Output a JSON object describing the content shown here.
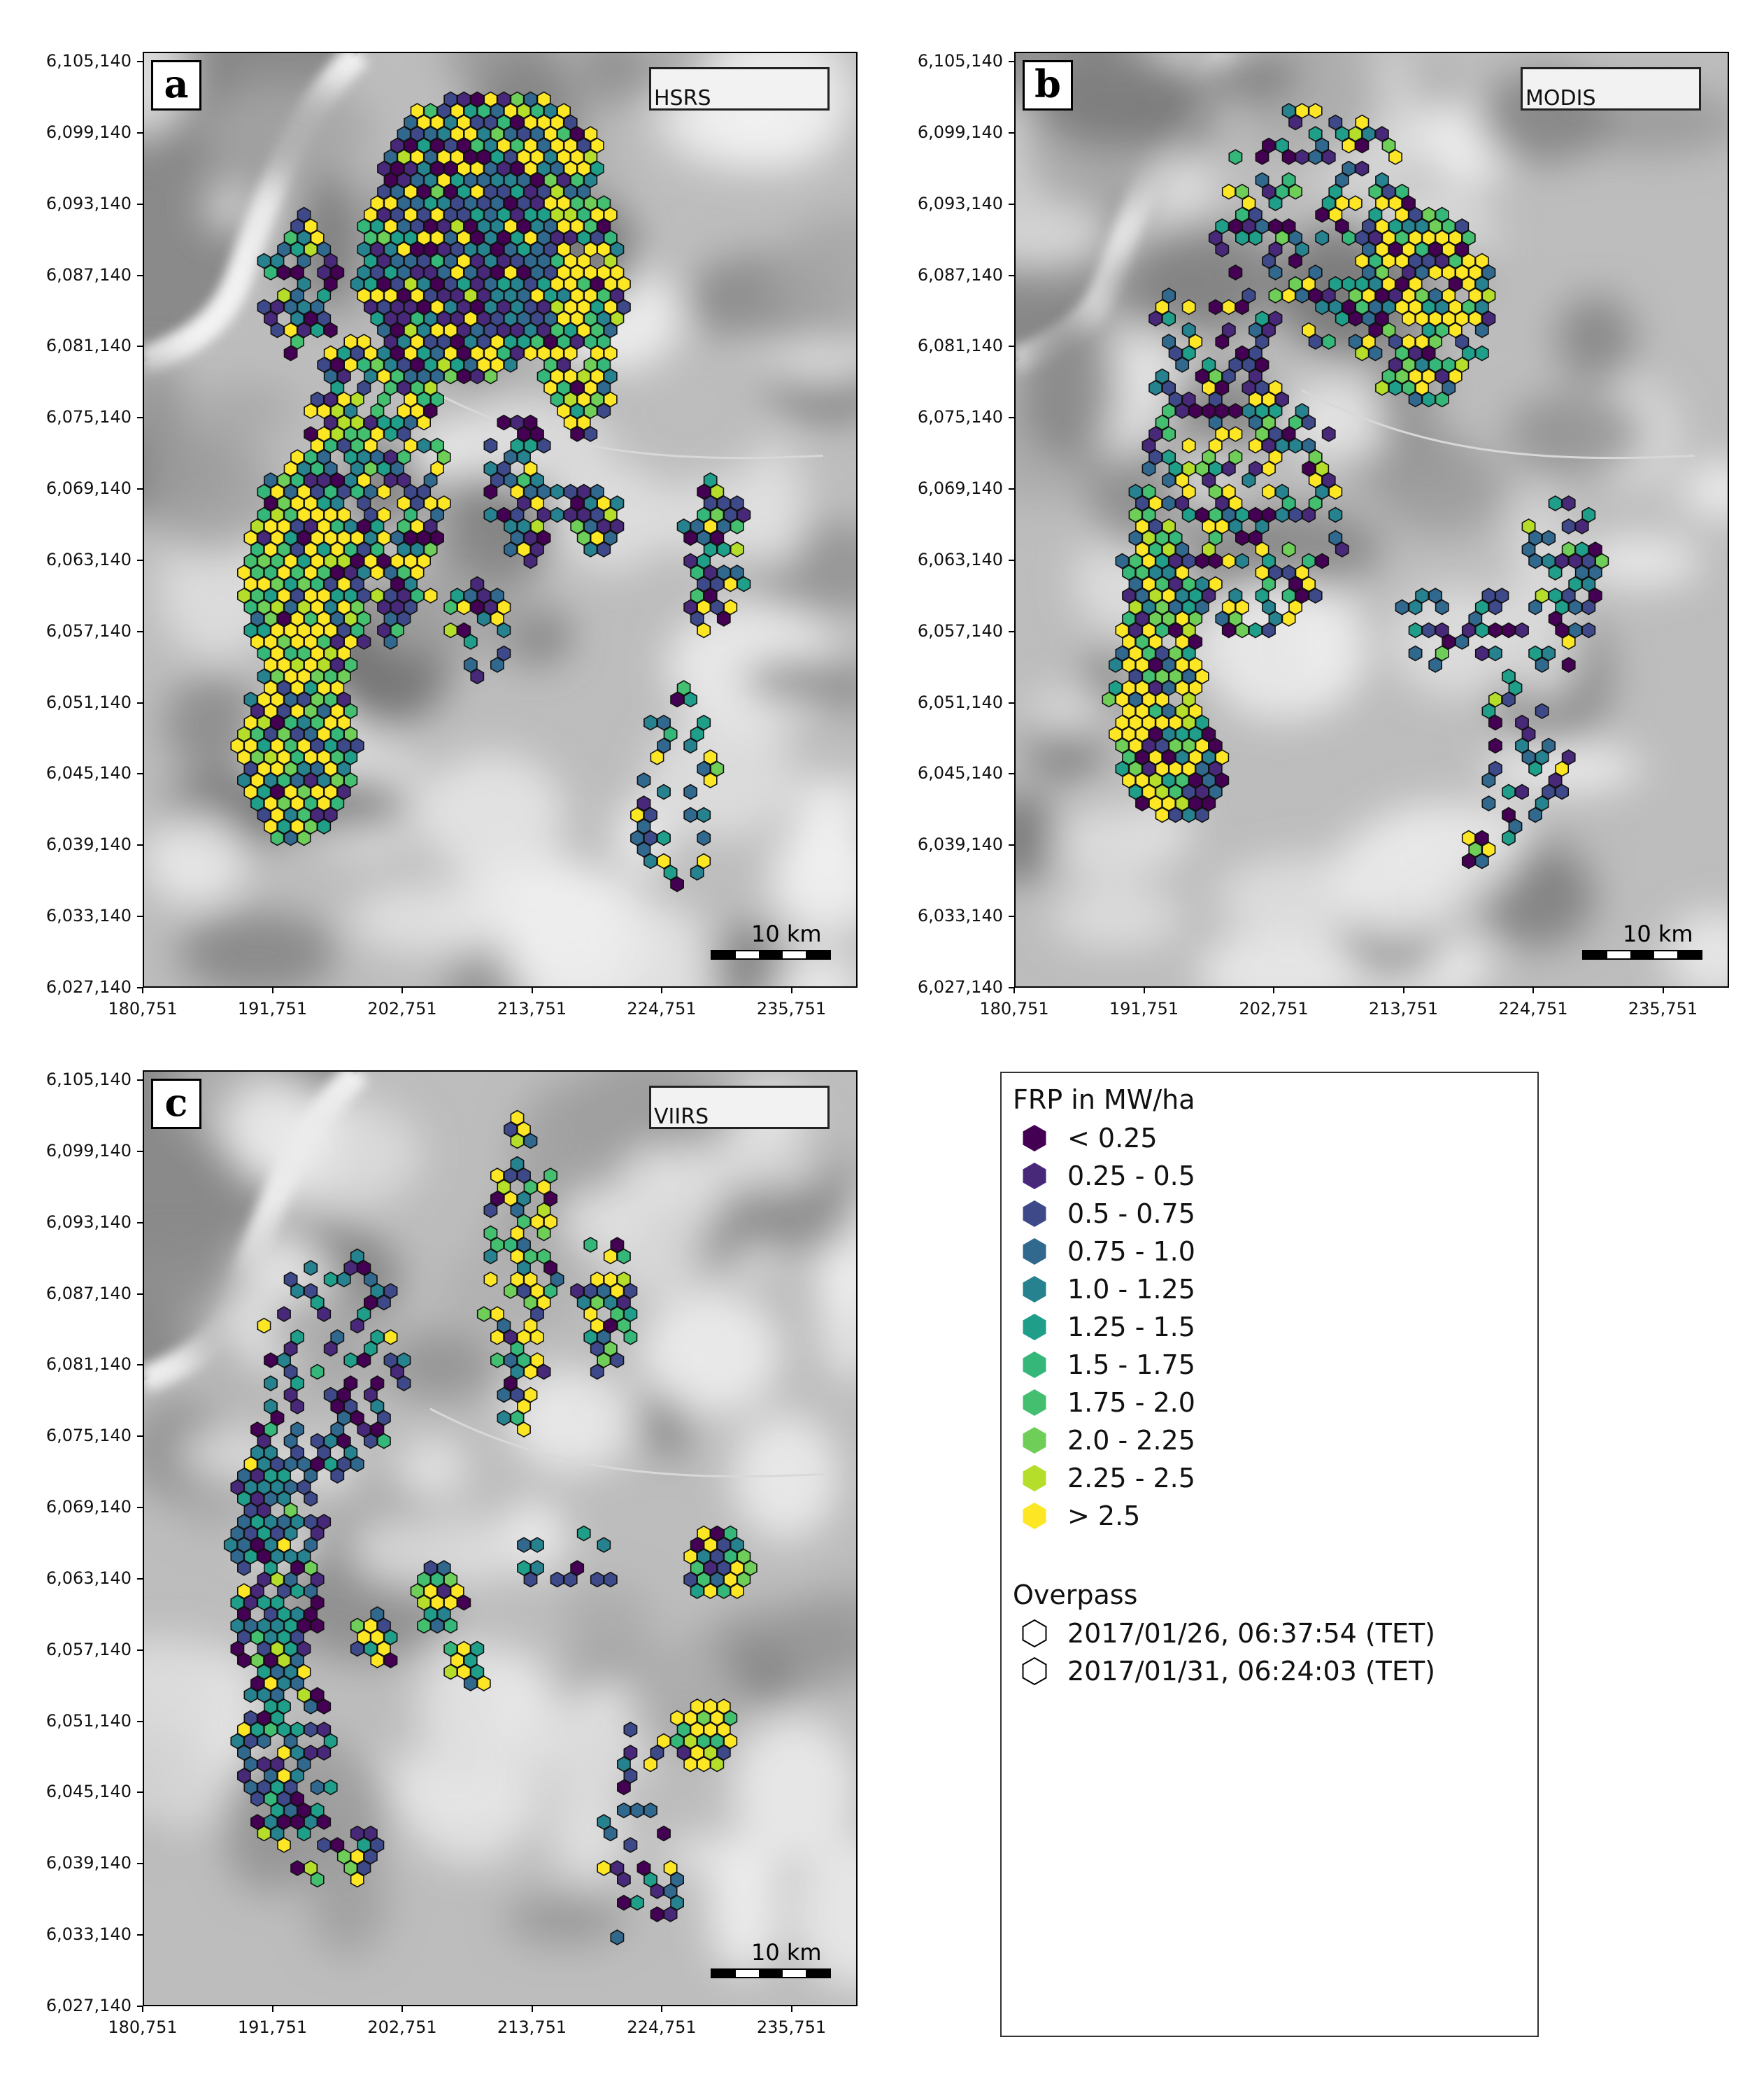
{
  "panels": [
    {
      "letter": "a",
      "sensor": "HSRS"
    },
    {
      "letter": "b",
      "sensor": "MODIS"
    },
    {
      "letter": "c",
      "sensor": "VIIRS"
    }
  ],
  "axes": {
    "y_ticks": [
      "6,105,140",
      "6,099,140",
      "6,093,140",
      "6,087,140",
      "6,081,140",
      "6,075,140",
      "6,069,140",
      "6,063,140",
      "6,057,140",
      "6,051,140",
      "6,045,140",
      "6,039,140",
      "6,033,140",
      "6,027,140"
    ],
    "x_ticks": [
      "180,751",
      "191,751",
      "202,751",
      "213,751",
      "224,751",
      "235,751"
    ]
  },
  "scalebar_label": "10 km",
  "legend": {
    "frp_title": "FRP in MW/ha",
    "classes": [
      {
        "label": "< 0.25",
        "color": "#440154"
      },
      {
        "label": "0.25 - 0.5",
        "color": "#482878"
      },
      {
        "label": "0.5 - 0.75",
        "color": "#3e4989"
      },
      {
        "label": "0.75 - 1.0",
        "color": "#31688e"
      },
      {
        "label": "1.0 - 1.25",
        "color": "#26828e"
      },
      {
        "label": "1.25 - 1.5",
        "color": "#1f9e89"
      },
      {
        "label": "1.5 - 1.75",
        "color": "#35b779"
      },
      {
        "label": "1.75 - 2.0",
        "color": "#44bf70"
      },
      {
        "label": "2.0 - 2.25",
        "color": "#6ece58"
      },
      {
        "label": "2.25 - 2.5",
        "color": "#b5de2b"
      },
      {
        "label": "> 2.5",
        "color": "#fde725"
      }
    ],
    "overpass_title": "Overpass",
    "overpasses": [
      "2017/01/26, 06:37:54 (TET)",
      "2017/01/31, 06:24:03 (TET)"
    ]
  }
}
